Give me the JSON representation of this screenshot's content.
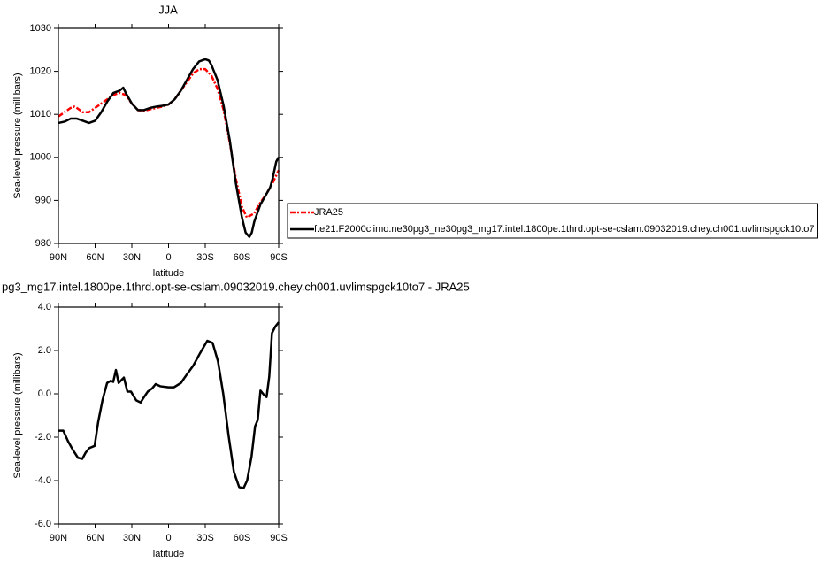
{
  "chart_data": [
    {
      "type": "line",
      "title": "JJA",
      "xlabel": "latitude",
      "ylabel": "Sea-level pressure (millibars)",
      "xlim": [
        90,
        -90
      ],
      "xticks": [
        {
          "value": 90,
          "label": "90N"
        },
        {
          "value": 60,
          "label": "60N"
        },
        {
          "value": 30,
          "label": "30N"
        },
        0,
        {
          "value": -30,
          "label": "30S"
        },
        {
          "value": -60,
          "label": "60S"
        },
        {
          "value": -90,
          "label": "90S"
        }
      ],
      "ylim": [
        980,
        1030
      ],
      "yticks": [
        980,
        990,
        1000,
        1010,
        1020,
        1030
      ],
      "legend": "outside-right",
      "series": [
        {
          "name": "JRA25",
          "color": "#ff0000",
          "line_style": "dashed",
          "x": [
            90,
            85,
            80,
            77,
            75,
            70,
            65,
            60,
            55,
            50,
            45,
            40,
            35,
            30,
            25,
            20,
            15,
            10,
            5,
            0,
            -5,
            -10,
            -15,
            -20,
            -25,
            -30,
            -35,
            -40,
            -45,
            -50,
            -55,
            -60,
            -64,
            -70,
            -75,
            -80,
            -85,
            -90
          ],
          "values": [
            1009.5,
            1010.5,
            1011.5,
            1011.8,
            1011.5,
            1010.5,
            1010.5,
            1011.5,
            1012.5,
            1013.5,
            1014.5,
            1015,
            1014.5,
            1012.5,
            1011,
            1010.8,
            1011.2,
            1011.5,
            1011.8,
            1012.3,
            1013.5,
            1015.5,
            1017.5,
            1019.5,
            1020.5,
            1020.5,
            1019,
            1016,
            1011,
            1003.5,
            995,
            988.5,
            986,
            987,
            989.5,
            991.5,
            994,
            997
          ]
        },
        {
          "name": "f.e21.F2000climo.ne30pg3_ne30pg3_mg17.intel.1800pe.1thrd.opt-se-cslam.09032019.chey.ch001.uvlimspgck10to7",
          "color": "#000000",
          "line_style": "solid",
          "x": [
            90,
            85,
            80,
            75,
            70,
            65,
            60,
            55,
            50,
            45,
            40,
            37,
            35,
            30,
            25,
            20,
            15,
            10,
            5,
            0,
            -5,
            -10,
            -15,
            -20,
            -25,
            -30,
            -33,
            -35,
            -40,
            -45,
            -50,
            -55,
            -60,
            -63,
            -66,
            -68,
            -70,
            -75,
            -80,
            -83,
            -85,
            -88,
            -90
          ],
          "values": [
            1008,
            1008.3,
            1009,
            1009,
            1008.5,
            1008,
            1008.5,
            1010.5,
            1013,
            1015,
            1015.5,
            1016.2,
            1015,
            1012.5,
            1011,
            1011,
            1011.5,
            1011.8,
            1012,
            1012.3,
            1013.5,
            1015.5,
            1018,
            1020.5,
            1022.3,
            1022.8,
            1022.5,
            1021.5,
            1018,
            1012,
            1004,
            994,
            986,
            982.5,
            981.5,
            982.5,
            985,
            989,
            991.5,
            993,
            995,
            999,
            1000
          ]
        }
      ]
    },
    {
      "type": "line",
      "title": "pg3_mg17.intel.1800pe.1thrd.opt-se-cslam.09032019.chey.ch001.uvlimspgck10to7 - JRA25",
      "xlabel": "latitude",
      "ylabel": "Sea-level pressure (millibars)",
      "xlim": [
        90,
        -90
      ],
      "xticks": [
        {
          "value": 90,
          "label": "90N"
        },
        {
          "value": 60,
          "label": "60N"
        },
        {
          "value": 30,
          "label": "30N"
        },
        0,
        {
          "value": -30,
          "label": "30S"
        },
        {
          "value": -60,
          "label": "60S"
        },
        {
          "value": -90,
          "label": "90S"
        }
      ],
      "ylim": [
        -6,
        4
      ],
      "yticks": [
        {
          "value": -6,
          "label": "-6.0"
        },
        {
          "value": -4,
          "label": "-4.0"
        },
        {
          "value": -2,
          "label": "-2.0"
        },
        {
          "value": 0,
          "label": "0.0"
        },
        {
          "value": 2,
          "label": "2.0"
        },
        {
          "value": 4,
          "label": "4.0"
        }
      ],
      "series": [
        {
          "color": "#000000",
          "line_style": "solid",
          "x": [
            90,
            86,
            82,
            78,
            74,
            70.5,
            67.6,
            64.7,
            60.4,
            57.5,
            54,
            50.2,
            47.3,
            45.2,
            43,
            40.8,
            36.5,
            33.6,
            30.7,
            26.4,
            22.8,
            20.6,
            17,
            13.4,
            10.5,
            6.8,
            0,
            -4.3,
            -10.1,
            -14.4,
            -20.2,
            -26,
            -31.7,
            -36,
            -40.4,
            -44.7,
            -49,
            -53.4,
            -57.7,
            -61.3,
            -64.2,
            -67.8,
            -70.7,
            -72.9,
            -75.1,
            -78,
            -80.1,
            -82.3,
            -84.5,
            -87.2,
            -90
          ],
          "values": [
            -1.7,
            -1.7,
            -2.2,
            -2.6,
            -2.95,
            -3.0,
            -2.7,
            -2.5,
            -2.4,
            -1.3,
            -0.3,
            0.5,
            0.6,
            0.55,
            1.1,
            0.5,
            0.75,
            0.1,
            0.1,
            -0.3,
            -0.4,
            -0.2,
            0.1,
            0.25,
            0.45,
            0.35,
            0.3,
            0.3,
            0.5,
            0.85,
            1.3,
            1.9,
            2.45,
            2.35,
            1.5,
            0,
            -1.9,
            -3.6,
            -4.3,
            -4.35,
            -4.0,
            -2.9,
            -1.5,
            -1.2,
            0.15,
            -0.05,
            -0.15,
            0.8,
            2.8,
            3.1,
            3.3
          ]
        }
      ]
    }
  ]
}
